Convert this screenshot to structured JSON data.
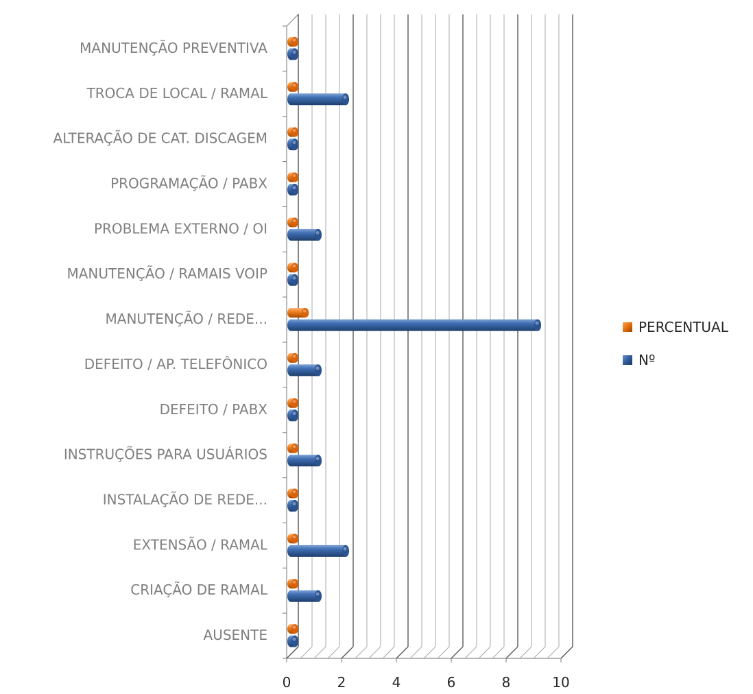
{
  "chart_data": {
    "type": "bar",
    "orientation": "horizontal",
    "style": "3d-cylinder",
    "categories": [
      "MANUTENÇÃO PREVENTIVA",
      "TROCA DE LOCAL / RAMAL",
      "ALTERAÇÃO DE CAT. DISCAGEM",
      "PROGRAMAÇÃO / PABX",
      "PROBLEMA EXTERNO / OI",
      "MANUTENÇÃO / RAMAIS VOIP",
      "MANUTENÇÃO / REDE...",
      "DEFEITO / AP. TELEFÔNICO",
      "DEFEITO / PABX",
      "INSTRUÇÕES PARA USUÁRIOS",
      "INSTALAÇÃO DE REDE...",
      "EXTENSÃO / RAMAL",
      "CRIAÇÃO DE RAMAL",
      "AUSENTE"
    ],
    "series": [
      {
        "name": "PERCENTUAL",
        "color": "#E46C0A",
        "values": [
          0,
          0.11,
          0,
          0,
          0.06,
          0,
          0.53,
          0.06,
          0,
          0.06,
          0,
          0.11,
          0.06,
          0
        ]
      },
      {
        "name": "Nº",
        "color": "#2E5C9A",
        "values": [
          0,
          2,
          0,
          0,
          1,
          0,
          9,
          1,
          0,
          1,
          0,
          2,
          1,
          0
        ]
      }
    ],
    "xlim": [
      0,
      10
    ],
    "x_ticks": [
      "0",
      "2",
      "4",
      "6",
      "8",
      "10"
    ],
    "grid": true,
    "legend_position": "right"
  }
}
